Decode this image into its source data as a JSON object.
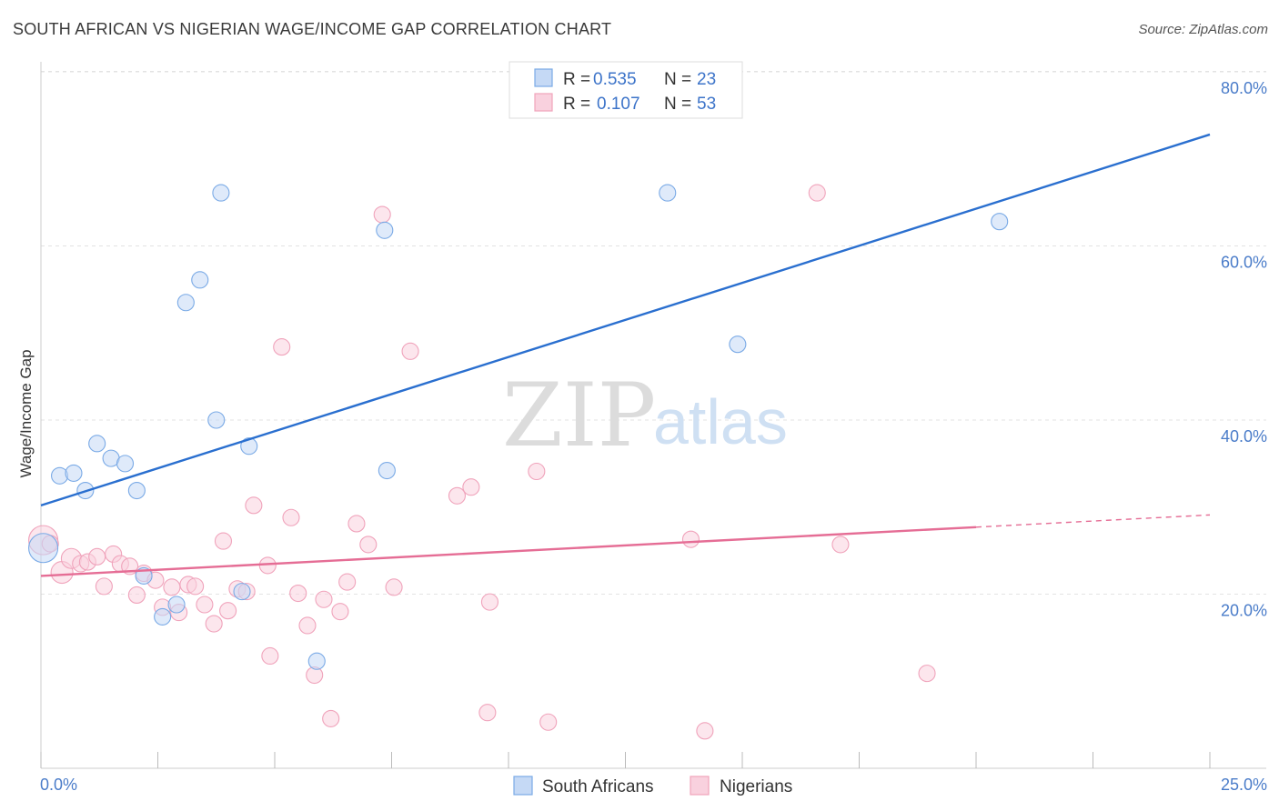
{
  "chart_data": {
    "type": "scatter",
    "title": "SOUTH AFRICAN VS NIGERIAN WAGE/INCOME GAP CORRELATION CHART",
    "source": "Source: ZipAtlas.com",
    "xlabel": "",
    "ylabel": "Wage/Income Gap",
    "xlim": [
      0,
      25
    ],
    "ylim": [
      0,
      80
    ],
    "x_tick_labels": [
      "0.0%",
      "25.0%"
    ],
    "y_ticks": [
      20,
      40,
      60,
      80
    ],
    "y_tick_labels": [
      "20.0%",
      "40.0%",
      "60.0%",
      "80.0%"
    ],
    "watermark": {
      "zip": "ZIP",
      "atlas": "atlas"
    },
    "legend": {
      "r_label": "R = ",
      "n_label": "N = ",
      "entries": [
        {
          "r": "0.535",
          "n": "23"
        },
        {
          "r": "0.107",
          "n": "53"
        }
      ]
    },
    "series": [
      {
        "name": "South Africans",
        "color": "#7aaae6",
        "fill": "#c5d9f5",
        "line_color": "#2a6fcf",
        "trend": {
          "x": [
            0,
            25
          ],
          "y": [
            30.2,
            72.8
          ]
        },
        "points": [
          {
            "x": 0.05,
            "y": 25.3,
            "s": 16
          },
          {
            "x": 0.4,
            "y": 33.6,
            "s": 9
          },
          {
            "x": 0.7,
            "y": 33.9,
            "s": 9
          },
          {
            "x": 0.95,
            "y": 31.9,
            "s": 9
          },
          {
            "x": 1.2,
            "y": 37.3,
            "s": 9
          },
          {
            "x": 1.5,
            "y": 35.6,
            "s": 9
          },
          {
            "x": 1.8,
            "y": 35.0,
            "s": 9
          },
          {
            "x": 2.05,
            "y": 31.9,
            "s": 9
          },
          {
            "x": 2.2,
            "y": 22.1,
            "s": 9
          },
          {
            "x": 2.6,
            "y": 17.4,
            "s": 9
          },
          {
            "x": 2.9,
            "y": 18.8,
            "s": 9
          },
          {
            "x": 3.1,
            "y": 53.5,
            "s": 9
          },
          {
            "x": 3.4,
            "y": 56.1,
            "s": 9
          },
          {
            "x": 3.75,
            "y": 40.0,
            "s": 9
          },
          {
            "x": 3.85,
            "y": 66.1,
            "s": 9
          },
          {
            "x": 4.3,
            "y": 20.3,
            "s": 9
          },
          {
            "x": 4.45,
            "y": 37.0,
            "s": 9
          },
          {
            "x": 5.9,
            "y": 12.3,
            "s": 9
          },
          {
            "x": 7.35,
            "y": 61.8,
            "s": 9
          },
          {
            "x": 7.4,
            "y": 34.2,
            "s": 9
          },
          {
            "x": 13.4,
            "y": 66.1,
            "s": 9
          },
          {
            "x": 14.9,
            "y": 48.7,
            "s": 9
          },
          {
            "x": 20.5,
            "y": 62.8,
            "s": 9
          }
        ]
      },
      {
        "name": "Nigerians",
        "color": "#f0a3bb",
        "fill": "#f9d1de",
        "line_color": "#e56d95",
        "trend": {
          "x": [
            0,
            20
          ],
          "y": [
            22.1,
            27.7
          ]
        },
        "trend_dash": {
          "x": [
            20,
            25
          ],
          "y": [
            27.7,
            29.1
          ]
        },
        "points": [
          {
            "x": 0.05,
            "y": 26.2,
            "s": 16
          },
          {
            "x": 0.2,
            "y": 25.8,
            "s": 9
          },
          {
            "x": 0.45,
            "y": 22.5,
            "s": 12
          },
          {
            "x": 0.65,
            "y": 24.1,
            "s": 11
          },
          {
            "x": 0.85,
            "y": 23.5,
            "s": 9
          },
          {
            "x": 1.0,
            "y": 23.7,
            "s": 9
          },
          {
            "x": 1.2,
            "y": 24.3,
            "s": 9
          },
          {
            "x": 1.35,
            "y": 20.9,
            "s": 9
          },
          {
            "x": 1.55,
            "y": 24.6,
            "s": 9
          },
          {
            "x": 1.7,
            "y": 23.5,
            "s": 9
          },
          {
            "x": 1.9,
            "y": 23.2,
            "s": 9
          },
          {
            "x": 2.05,
            "y": 19.9,
            "s": 9
          },
          {
            "x": 2.2,
            "y": 22.4,
            "s": 9
          },
          {
            "x": 2.45,
            "y": 21.6,
            "s": 9
          },
          {
            "x": 2.6,
            "y": 18.5,
            "s": 9
          },
          {
            "x": 2.8,
            "y": 20.8,
            "s": 9
          },
          {
            "x": 2.95,
            "y": 17.9,
            "s": 9
          },
          {
            "x": 3.15,
            "y": 21.1,
            "s": 9
          },
          {
            "x": 3.3,
            "y": 20.9,
            "s": 9
          },
          {
            "x": 3.5,
            "y": 18.8,
            "s": 9
          },
          {
            "x": 3.7,
            "y": 16.6,
            "s": 9
          },
          {
            "x": 3.9,
            "y": 26.1,
            "s": 9
          },
          {
            "x": 4.0,
            "y": 18.1,
            "s": 9
          },
          {
            "x": 4.2,
            "y": 20.6,
            "s": 9
          },
          {
            "x": 4.4,
            "y": 20.3,
            "s": 9
          },
          {
            "x": 4.55,
            "y": 30.2,
            "s": 9
          },
          {
            "x": 4.85,
            "y": 23.3,
            "s": 9
          },
          {
            "x": 4.9,
            "y": 12.9,
            "s": 9
          },
          {
            "x": 5.15,
            "y": 48.4,
            "s": 9
          },
          {
            "x": 5.35,
            "y": 28.8,
            "s": 9
          },
          {
            "x": 5.5,
            "y": 20.1,
            "s": 9
          },
          {
            "x": 5.7,
            "y": 16.4,
            "s": 9
          },
          {
            "x": 5.85,
            "y": 10.7,
            "s": 9
          },
          {
            "x": 6.05,
            "y": 19.4,
            "s": 9
          },
          {
            "x": 6.2,
            "y": 5.7,
            "s": 9
          },
          {
            "x": 6.4,
            "y": 18.0,
            "s": 9
          },
          {
            "x": 6.55,
            "y": 21.4,
            "s": 9
          },
          {
            "x": 6.75,
            "y": 28.1,
            "s": 9
          },
          {
            "x": 7.0,
            "y": 25.7,
            "s": 9
          },
          {
            "x": 7.3,
            "y": 63.6,
            "s": 9
          },
          {
            "x": 7.55,
            "y": 20.8,
            "s": 9
          },
          {
            "x": 7.9,
            "y": 47.9,
            "s": 9
          },
          {
            "x": 8.9,
            "y": 31.3,
            "s": 9
          },
          {
            "x": 9.2,
            "y": 32.3,
            "s": 9
          },
          {
            "x": 9.55,
            "y": 6.4,
            "s": 9
          },
          {
            "x": 9.6,
            "y": 19.1,
            "s": 9
          },
          {
            "x": 10.6,
            "y": 34.1,
            "s": 9
          },
          {
            "x": 10.85,
            "y": 5.3,
            "s": 9
          },
          {
            "x": 13.9,
            "y": 26.3,
            "s": 9
          },
          {
            "x": 14.2,
            "y": 4.3,
            "s": 9
          },
          {
            "x": 17.1,
            "y": 25.7,
            "s": 9
          },
          {
            "x": 16.6,
            "y": 66.1,
            "s": 9
          },
          {
            "x": 18.95,
            "y": 10.9,
            "s": 9
          }
        ]
      }
    ]
  }
}
